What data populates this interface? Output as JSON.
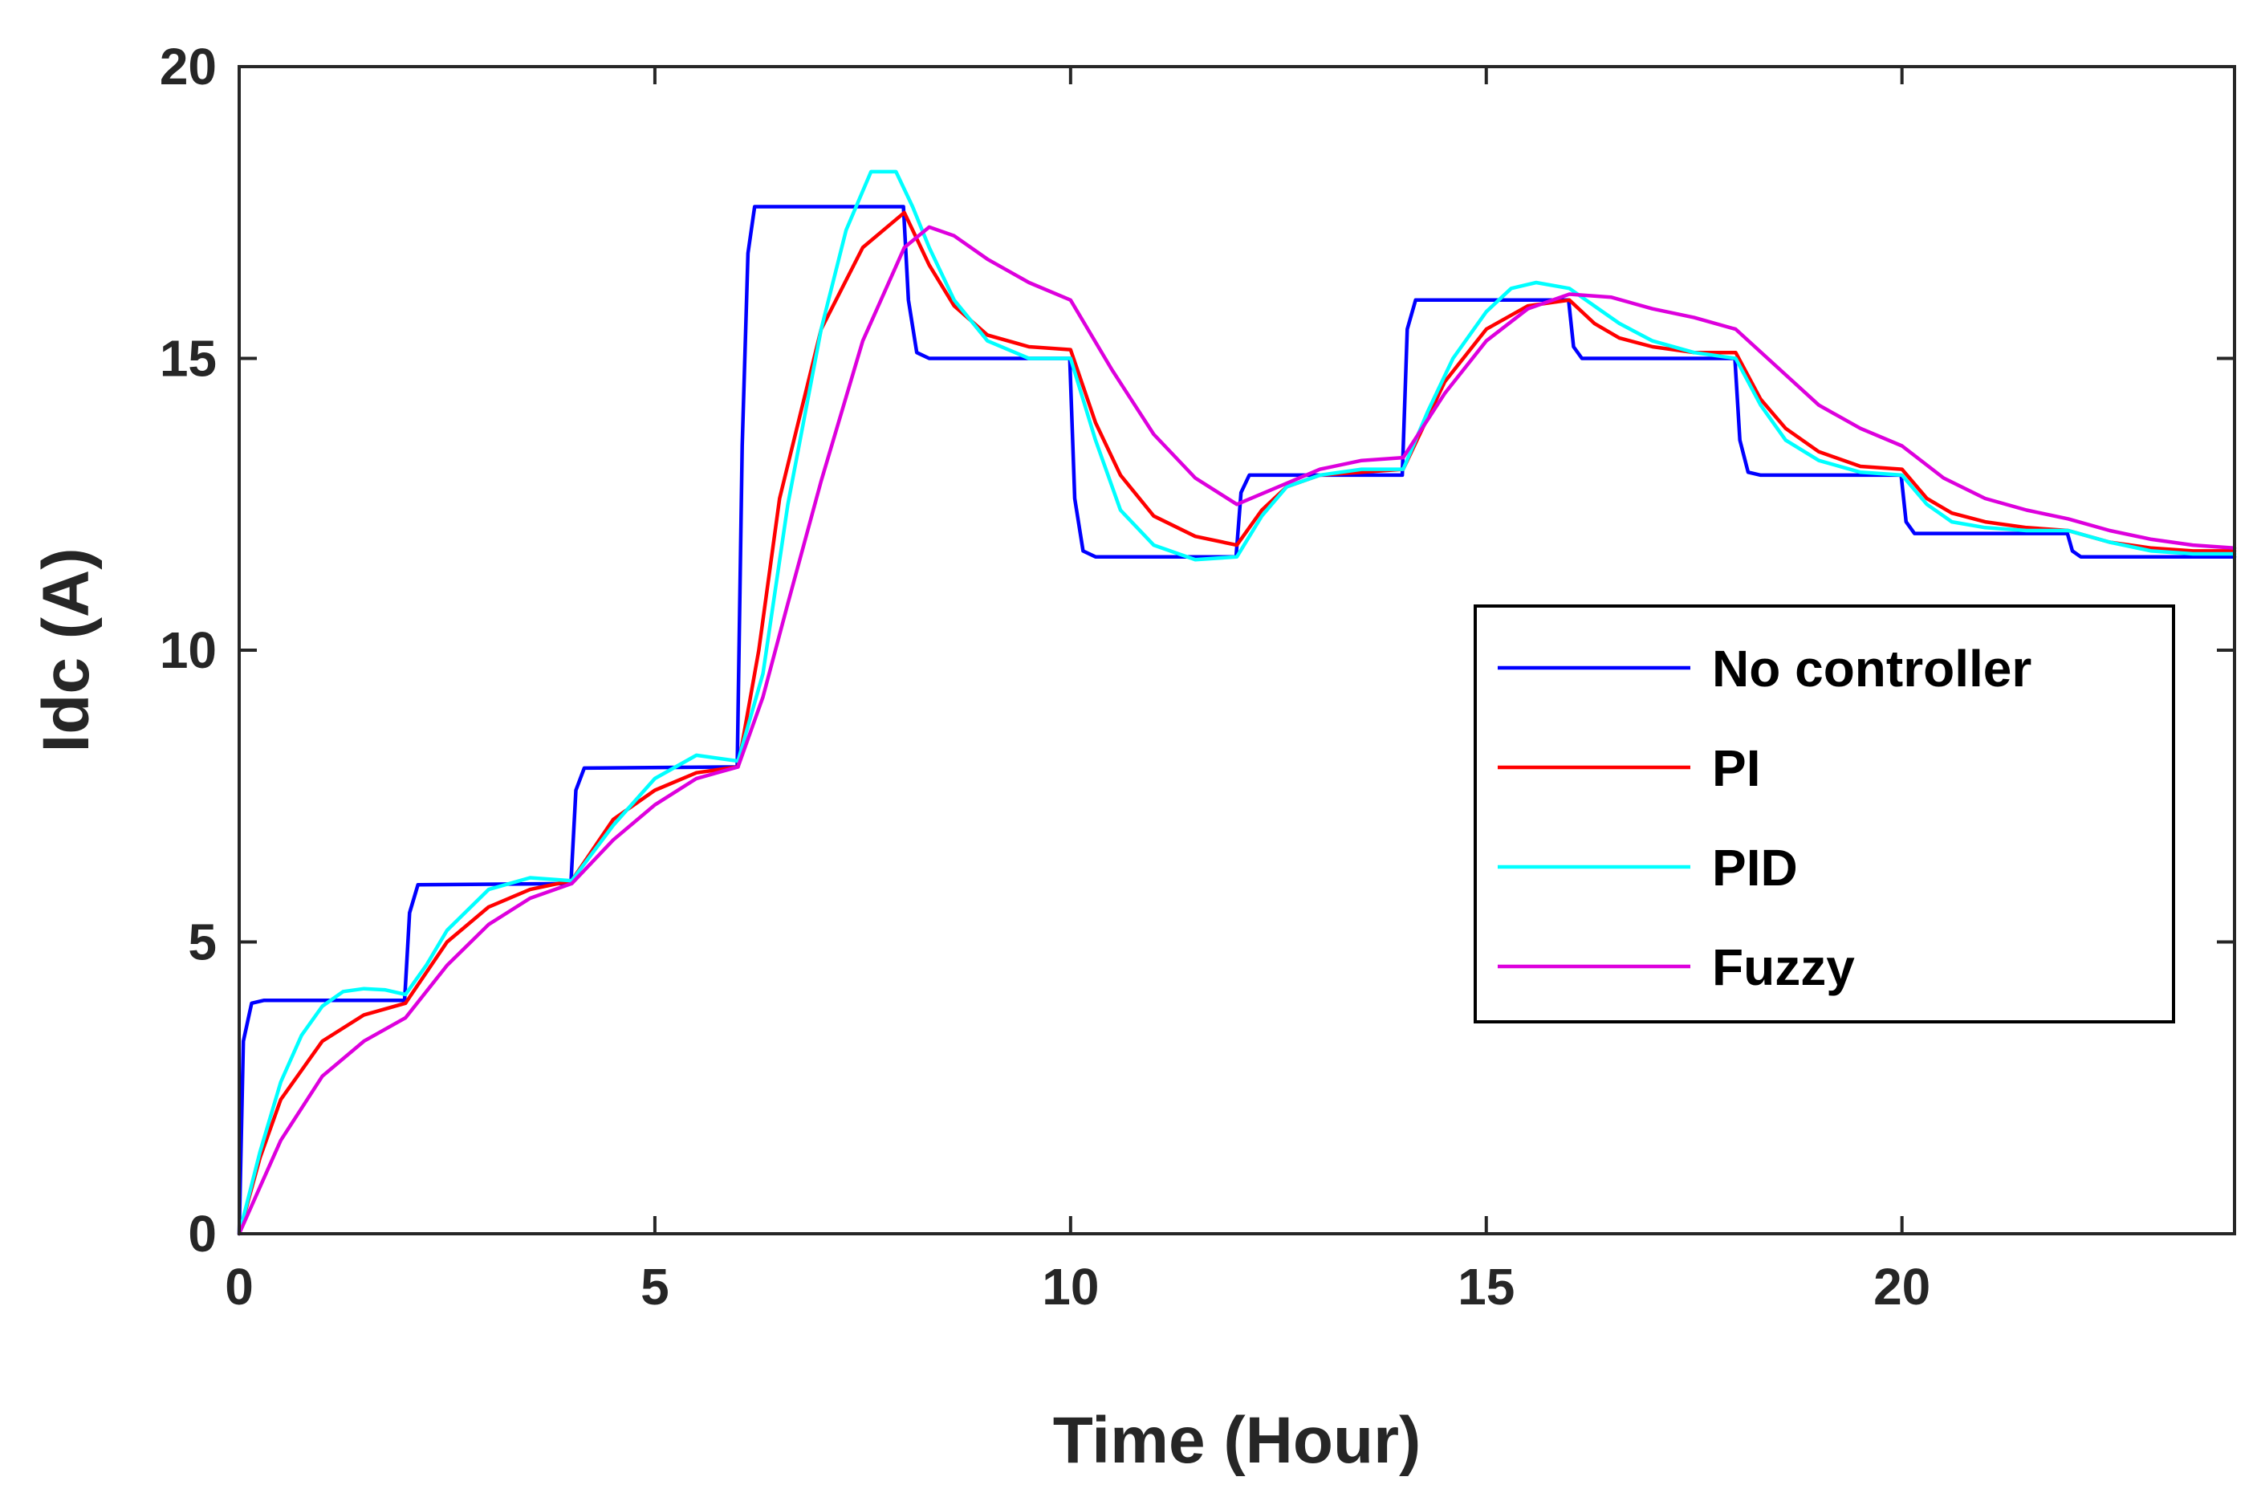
{
  "chart_data": {
    "type": "line",
    "xlabel": "Time (Hour)",
    "ylabel": "Idc (A)",
    "xlim": [
      0,
      24
    ],
    "ylim": [
      0,
      20
    ],
    "xticks": [
      0,
      5,
      10,
      15,
      20
    ],
    "yticks": [
      0,
      5,
      10,
      15,
      20
    ],
    "grid": false,
    "legend_position": "right",
    "series": [
      {
        "name": "No controller",
        "color": "#0000ff",
        "x": [
          0,
          0.05,
          0.15,
          0.3,
          1.99,
          2.05,
          2.15,
          3.99,
          4.05,
          4.15,
          5.99,
          6.05,
          6.12,
          6.2,
          7.99,
          8.05,
          8.15,
          8.3,
          9.99,
          10.05,
          10.15,
          10.3,
          11.99,
          12.05,
          12.15,
          13.99,
          14.05,
          14.15,
          15.99,
          16.05,
          16.15,
          17.99,
          18.05,
          18.15,
          18.3,
          19.99,
          20.05,
          20.15,
          21.99,
          22.05,
          22.15,
          24
        ],
        "y": [
          0,
          3.3,
          3.95,
          4.0,
          4.0,
          5.5,
          5.98,
          6.0,
          7.6,
          7.98,
          8.0,
          13.5,
          16.8,
          17.6,
          17.6,
          16.0,
          15.1,
          15.0,
          15.0,
          12.6,
          11.7,
          11.6,
          11.6,
          12.7,
          13.0,
          13.0,
          15.5,
          16.0,
          16.0,
          15.2,
          15.0,
          15.0,
          13.6,
          13.05,
          13.0,
          13.0,
          12.2,
          12.0,
          12.0,
          11.7,
          11.6,
          11.6
        ]
      },
      {
        "name": "PI",
        "color": "#ff0000",
        "x": [
          0,
          0.25,
          0.5,
          1.0,
          1.5,
          2.0,
          2.5,
          3.0,
          3.5,
          4.0,
          4.5,
          5.0,
          5.5,
          6.0,
          6.25,
          6.5,
          7.0,
          7.5,
          8.0,
          8.3,
          8.6,
          9.0,
          9.5,
          10.0,
          10.3,
          10.6,
          11.0,
          11.5,
          12.0,
          12.3,
          12.6,
          13.0,
          13.5,
          14.0,
          14.5,
          15.0,
          15.5,
          16.0,
          16.3,
          16.6,
          17.0,
          17.5,
          18.0,
          18.3,
          18.6,
          19.0,
          19.5,
          20.0,
          20.3,
          20.6,
          21.0,
          21.5,
          22.0,
          22.5,
          23.0,
          23.5,
          24
        ],
        "y": [
          0,
          1.3,
          2.3,
          3.3,
          3.75,
          3.95,
          5.0,
          5.6,
          5.9,
          6.05,
          7.1,
          7.6,
          7.9,
          8.0,
          10.0,
          12.6,
          15.5,
          16.9,
          17.5,
          16.6,
          15.9,
          15.4,
          15.2,
          15.15,
          13.9,
          13.0,
          12.3,
          11.95,
          11.8,
          12.4,
          12.8,
          13.0,
          13.05,
          13.1,
          14.6,
          15.5,
          15.9,
          16.0,
          15.6,
          15.35,
          15.2,
          15.1,
          15.1,
          14.3,
          13.8,
          13.4,
          13.15,
          13.1,
          12.6,
          12.35,
          12.2,
          12.1,
          12.05,
          11.85,
          11.75,
          11.7,
          11.7
        ]
      },
      {
        "name": "PID",
        "color": "#00ffff",
        "x": [
          0,
          0.25,
          0.5,
          0.75,
          1.0,
          1.25,
          1.5,
          1.75,
          2.0,
          2.25,
          2.5,
          3.0,
          3.5,
          4.0,
          4.5,
          5.0,
          5.5,
          6.0,
          6.3,
          6.6,
          7.0,
          7.3,
          7.6,
          7.9,
          8.1,
          8.3,
          8.6,
          9.0,
          9.5,
          10.0,
          10.3,
          10.6,
          11.0,
          11.5,
          12.0,
          12.3,
          12.6,
          13.0,
          13.5,
          14.0,
          14.3,
          14.6,
          15.0,
          15.3,
          15.6,
          16.0,
          16.3,
          16.6,
          17.0,
          17.5,
          18.0,
          18.3,
          18.6,
          19.0,
          19.5,
          20.0,
          20.3,
          20.6,
          21.0,
          21.5,
          22.0,
          22.5,
          23.0,
          23.5,
          24
        ],
        "y": [
          0,
          1.4,
          2.6,
          3.4,
          3.9,
          4.15,
          4.2,
          4.18,
          4.1,
          4.6,
          5.2,
          5.9,
          6.1,
          6.05,
          7.0,
          7.8,
          8.2,
          8.1,
          9.6,
          12.5,
          15.5,
          17.2,
          18.2,
          18.2,
          17.6,
          16.9,
          16.0,
          15.3,
          15.0,
          15.0,
          13.6,
          12.4,
          11.8,
          11.55,
          11.6,
          12.3,
          12.8,
          13.0,
          13.1,
          13.1,
          14.1,
          15.0,
          15.8,
          16.2,
          16.3,
          16.2,
          15.9,
          15.6,
          15.3,
          15.1,
          15.0,
          14.2,
          13.6,
          13.25,
          13.05,
          13.0,
          12.5,
          12.2,
          12.1,
          12.05,
          12.05,
          11.85,
          11.7,
          11.65,
          11.65
        ]
      },
      {
        "name": "Fuzzy",
        "color": "#dd00dd",
        "x": [
          0,
          0.25,
          0.5,
          1.0,
          1.5,
          2.0,
          2.5,
          3.0,
          3.5,
          4.0,
          4.5,
          5.0,
          5.5,
          6.0,
          6.3,
          6.6,
          7.0,
          7.5,
          8.0,
          8.3,
          8.6,
          9.0,
          9.5,
          10.0,
          10.5,
          11.0,
          11.5,
          12.0,
          12.5,
          13.0,
          13.5,
          14.0,
          14.5,
          15.0,
          15.5,
          16.0,
          16.5,
          17.0,
          17.5,
          18.0,
          18.5,
          19.0,
          19.5,
          20.0,
          20.5,
          21.0,
          21.5,
          22.0,
          22.5,
          23.0,
          23.5,
          24
        ],
        "y": [
          0,
          0.8,
          1.6,
          2.7,
          3.3,
          3.7,
          4.6,
          5.3,
          5.75,
          6.0,
          6.75,
          7.35,
          7.8,
          8.0,
          9.2,
          10.8,
          12.9,
          15.3,
          16.9,
          17.25,
          17.1,
          16.7,
          16.3,
          16.0,
          14.8,
          13.7,
          12.95,
          12.5,
          12.8,
          13.1,
          13.25,
          13.3,
          14.4,
          15.3,
          15.85,
          16.1,
          16.05,
          15.85,
          15.7,
          15.5,
          14.85,
          14.2,
          13.8,
          13.5,
          12.95,
          12.6,
          12.4,
          12.25,
          12.05,
          11.9,
          11.8,
          11.75
        ]
      }
    ]
  }
}
